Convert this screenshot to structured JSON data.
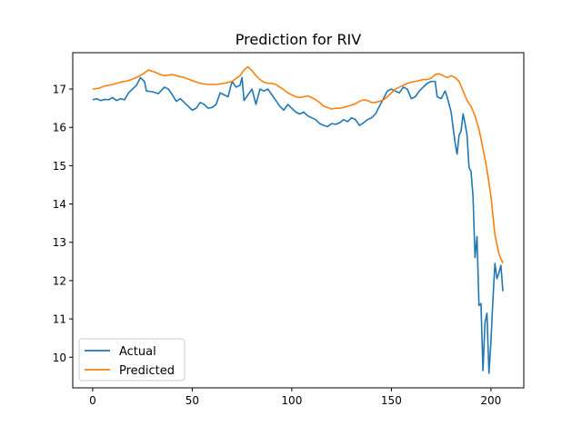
{
  "chart_data": {
    "type": "line",
    "title": "Prediction for RIV",
    "xlabel": "",
    "ylabel": "",
    "xlim": [
      -10,
      216.5
    ],
    "ylim": [
      9.2,
      17.95
    ],
    "xticks": [
      0,
      50,
      100,
      150,
      200
    ],
    "yticks": [
      10,
      11,
      12,
      13,
      14,
      15,
      16,
      17
    ],
    "grid": false,
    "legend_position": "lower-left",
    "series": [
      {
        "name": "Actual",
        "color": "#1f77b4",
        "points": [
          [
            0,
            16.72
          ],
          [
            2,
            16.75
          ],
          [
            4,
            16.7
          ],
          [
            6,
            16.73
          ],
          [
            8,
            16.72
          ],
          [
            10,
            16.78
          ],
          [
            12,
            16.7
          ],
          [
            14,
            16.75
          ],
          [
            16,
            16.72
          ],
          [
            18,
            16.9
          ],
          [
            20,
            17.0
          ],
          [
            22,
            17.1
          ],
          [
            24,
            17.3
          ],
          [
            26,
            17.2
          ],
          [
            27,
            16.95
          ],
          [
            30,
            16.93
          ],
          [
            33,
            16.88
          ],
          [
            36,
            17.05
          ],
          [
            38,
            17.0
          ],
          [
            40,
            16.85
          ],
          [
            42,
            16.68
          ],
          [
            44,
            16.75
          ],
          [
            46,
            16.65
          ],
          [
            48,
            16.55
          ],
          [
            50,
            16.45
          ],
          [
            52,
            16.5
          ],
          [
            54,
            16.65
          ],
          [
            56,
            16.6
          ],
          [
            58,
            16.5
          ],
          [
            60,
            16.52
          ],
          [
            62,
            16.6
          ],
          [
            64,
            16.9
          ],
          [
            66,
            16.85
          ],
          [
            68,
            16.8
          ],
          [
            70,
            17.2
          ],
          [
            72,
            17.05
          ],
          [
            74,
            17.1
          ],
          [
            75,
            17.3
          ],
          [
            76,
            16.7
          ],
          [
            78,
            16.85
          ],
          [
            80,
            17.0
          ],
          [
            82,
            16.6
          ],
          [
            84,
            17.0
          ],
          [
            86,
            16.95
          ],
          [
            88,
            17.0
          ],
          [
            90,
            16.85
          ],
          [
            92,
            16.7
          ],
          [
            94,
            16.55
          ],
          [
            96,
            16.45
          ],
          [
            98,
            16.6
          ],
          [
            100,
            16.5
          ],
          [
            102,
            16.4
          ],
          [
            104,
            16.35
          ],
          [
            106,
            16.4
          ],
          [
            108,
            16.3
          ],
          [
            110,
            16.25
          ],
          [
            112,
            16.2
          ],
          [
            114,
            16.1
          ],
          [
            116,
            16.05
          ],
          [
            118,
            16.02
          ],
          [
            120,
            16.1
          ],
          [
            122,
            16.08
          ],
          [
            124,
            16.12
          ],
          [
            126,
            16.2
          ],
          [
            128,
            16.15
          ],
          [
            130,
            16.25
          ],
          [
            132,
            16.2
          ],
          [
            134,
            16.05
          ],
          [
            136,
            16.12
          ],
          [
            138,
            16.2
          ],
          [
            140,
            16.25
          ],
          [
            142,
            16.35
          ],
          [
            144,
            16.55
          ],
          [
            146,
            16.75
          ],
          [
            148,
            16.95
          ],
          [
            150,
            17.0
          ],
          [
            152,
            16.95
          ],
          [
            154,
            16.9
          ],
          [
            156,
            17.05
          ],
          [
            158,
            17.0
          ],
          [
            160,
            16.75
          ],
          [
            162,
            16.8
          ],
          [
            164,
            16.95
          ],
          [
            166,
            17.05
          ],
          [
            168,
            17.15
          ],
          [
            170,
            17.2
          ],
          [
            172,
            17.2
          ],
          [
            173,
            16.8
          ],
          [
            175,
            16.75
          ],
          [
            176,
            16.85
          ],
          [
            177,
            16.95
          ],
          [
            178,
            16.8
          ],
          [
            179,
            16.6
          ],
          [
            180,
            16.4
          ],
          [
            181,
            16.0
          ],
          [
            182,
            15.6
          ],
          [
            183,
            15.3
          ],
          [
            184,
            15.8
          ],
          [
            185,
            15.9
          ],
          [
            186,
            16.35
          ],
          [
            187,
            16.1
          ],
          [
            188,
            15.8
          ],
          [
            189,
            14.95
          ],
          [
            190,
            14.85
          ],
          [
            191,
            14.2
          ],
          [
            192,
            12.6
          ],
          [
            193,
            13.15
          ],
          [
            194,
            11.35
          ],
          [
            195,
            11.4
          ],
          [
            196,
            9.65
          ],
          [
            197,
            10.9
          ],
          [
            198,
            11.15
          ],
          [
            199,
            9.58
          ],
          [
            200,
            10.4
          ],
          [
            201,
            11.5
          ],
          [
            202,
            12.45
          ],
          [
            203,
            12.05
          ],
          [
            204,
            12.2
          ],
          [
            205,
            12.4
          ],
          [
            206,
            11.72
          ]
        ]
      },
      {
        "name": "Predicted",
        "color": "#ff7f0e",
        "points": [
          [
            0,
            17.0
          ],
          [
            3,
            17.02
          ],
          [
            6,
            17.08
          ],
          [
            10,
            17.12
          ],
          [
            14,
            17.18
          ],
          [
            18,
            17.22
          ],
          [
            22,
            17.3
          ],
          [
            26,
            17.42
          ],
          [
            28,
            17.5
          ],
          [
            31,
            17.45
          ],
          [
            34,
            17.38
          ],
          [
            36,
            17.35
          ],
          [
            40,
            17.38
          ],
          [
            42,
            17.35
          ],
          [
            46,
            17.3
          ],
          [
            50,
            17.22
          ],
          [
            54,
            17.15
          ],
          [
            58,
            17.12
          ],
          [
            62,
            17.12
          ],
          [
            66,
            17.15
          ],
          [
            70,
            17.2
          ],
          [
            74,
            17.35
          ],
          [
            76,
            17.5
          ],
          [
            78,
            17.58
          ],
          [
            80,
            17.48
          ],
          [
            82,
            17.35
          ],
          [
            84,
            17.25
          ],
          [
            86,
            17.18
          ],
          [
            88,
            17.15
          ],
          [
            90,
            17.15
          ],
          [
            92,
            17.12
          ],
          [
            94,
            17.05
          ],
          [
            96,
            16.98
          ],
          [
            98,
            16.9
          ],
          [
            100,
            16.85
          ],
          [
            102,
            16.8
          ],
          [
            104,
            16.78
          ],
          [
            106,
            16.8
          ],
          [
            108,
            16.82
          ],
          [
            110,
            16.78
          ],
          [
            112,
            16.72
          ],
          [
            114,
            16.65
          ],
          [
            116,
            16.55
          ],
          [
            118,
            16.52
          ],
          [
            120,
            16.48
          ],
          [
            122,
            16.5
          ],
          [
            124,
            16.5
          ],
          [
            126,
            16.52
          ],
          [
            128,
            16.55
          ],
          [
            130,
            16.58
          ],
          [
            132,
            16.62
          ],
          [
            134,
            16.68
          ],
          [
            136,
            16.72
          ],
          [
            138,
            16.7
          ],
          [
            140,
            16.65
          ],
          [
            142,
            16.65
          ],
          [
            144,
            16.68
          ],
          [
            146,
            16.72
          ],
          [
            148,
            16.8
          ],
          [
            150,
            16.9
          ],
          [
            152,
            17.0
          ],
          [
            154,
            17.05
          ],
          [
            156,
            17.1
          ],
          [
            158,
            17.15
          ],
          [
            160,
            17.18
          ],
          [
            162,
            17.2
          ],
          [
            164,
            17.22
          ],
          [
            166,
            17.25
          ],
          [
            168,
            17.25
          ],
          [
            170,
            17.28
          ],
          [
            172,
            17.38
          ],
          [
            174,
            17.4
          ],
          [
            176,
            17.35
          ],
          [
            178,
            17.3
          ],
          [
            180,
            17.35
          ],
          [
            182,
            17.3
          ],
          [
            184,
            17.2
          ],
          [
            186,
            16.95
          ],
          [
            188,
            16.7
          ],
          [
            190,
            16.55
          ],
          [
            192,
            16.3
          ],
          [
            194,
            15.95
          ],
          [
            196,
            15.45
          ],
          [
            198,
            14.9
          ],
          [
            200,
            14.2
          ],
          [
            202,
            13.2
          ],
          [
            204,
            12.7
          ],
          [
            206,
            12.45
          ]
        ]
      }
    ]
  }
}
